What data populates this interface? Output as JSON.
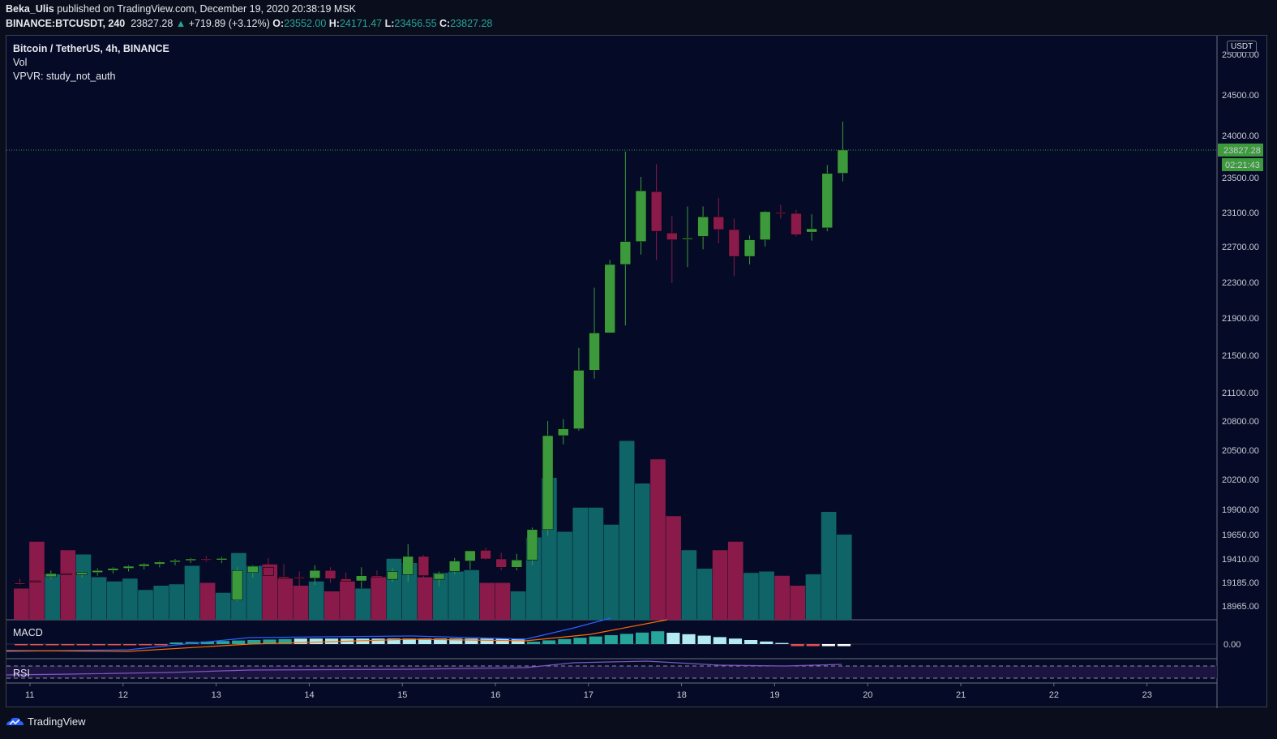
{
  "header": {
    "author": "Beka_Ulis",
    "published": " published on TradingView.com, December 19, 2020 20:38:19 MSK",
    "symbol": "BINANCE:BTCUSDT, 240",
    "last": "23827.28",
    "change": "+719.89 (+3.12%)",
    "o_label": "O:",
    "o": "23552.00",
    "h_label": "H:",
    "h": "24171.47",
    "l_label": "L:",
    "l": "23456.55",
    "c_label": "C:",
    "c": "23827.28"
  },
  "legend": {
    "title": "Bitcoin / TetherUS, 4h, BINANCE",
    "vol": "Vol",
    "vpvr": "VPVR: study_not_auth"
  },
  "currency_button": "USDT",
  "price_axis": {
    "labels": [
      "25000.00",
      "24500.00",
      "24000.00",
      "23500.00",
      "23100.00",
      "22700.00",
      "22300.00",
      "21900.00",
      "21500.00",
      "21100.00",
      "20800.00",
      "20500.00",
      "20200.00",
      "19900.00",
      "19650.00",
      "19410.00",
      "19185.00",
      "18965.00"
    ],
    "last_price": "23827.28",
    "countdown": "02:21:43"
  },
  "macd": {
    "label": "MACD",
    "zero": "0.00"
  },
  "rsi": {
    "label": "RSI"
  },
  "time_axis": {
    "labels": [
      "11",
      "12",
      "13",
      "14",
      "15",
      "16",
      "17",
      "18",
      "19",
      "20",
      "21",
      "22",
      "23"
    ]
  },
  "footer": {
    "brand": "TradingView"
  },
  "colors": {
    "up": "#3c9a3c",
    "down": "#8a1a4a",
    "vol_up": "#0f6468",
    "vol_down": "#8a1a4a",
    "bg": "#050a26"
  },
  "chart_data": {
    "type": "candlestick",
    "timeframe": "4h",
    "x_start": "Dec 11",
    "candles": [
      {
        "o": 19180,
        "h": 19220,
        "l": 19160,
        "c": 19175
      },
      {
        "o": 19200,
        "h": 19260,
        "l": 19150,
        "c": 19190
      },
      {
        "o": 19240,
        "h": 19300,
        "l": 19220,
        "c": 19270
      },
      {
        "o": 19270,
        "h": 19310,
        "l": 19240,
        "c": 19260
      },
      {
        "o": 19260,
        "h": 19290,
        "l": 19230,
        "c": 19280
      },
      {
        "o": 19280,
        "h": 19320,
        "l": 19250,
        "c": 19300
      },
      {
        "o": 19300,
        "h": 19330,
        "l": 19270,
        "c": 19320
      },
      {
        "o": 19320,
        "h": 19350,
        "l": 19290,
        "c": 19340
      },
      {
        "o": 19340,
        "h": 19370,
        "l": 19310,
        "c": 19360
      },
      {
        "o": 19360,
        "h": 19390,
        "l": 19330,
        "c": 19380
      },
      {
        "o": 19380,
        "h": 19410,
        "l": 19350,
        "c": 19395
      },
      {
        "o": 19395,
        "h": 19420,
        "l": 19370,
        "c": 19410
      },
      {
        "o": 19410,
        "h": 19440,
        "l": 19380,
        "c": 19400
      },
      {
        "o": 19400,
        "h": 19430,
        "l": 19370,
        "c": 19415
      },
      {
        "o": 19020,
        "h": 19330,
        "l": 19010,
        "c": 19300
      },
      {
        "o": 19280,
        "h": 19350,
        "l": 19230,
        "c": 19340
      },
      {
        "o": 19330,
        "h": 19420,
        "l": 19260,
        "c": 19250
      },
      {
        "o": 19240,
        "h": 19360,
        "l": 19200,
        "c": 19225
      },
      {
        "o": 19235,
        "h": 19290,
        "l": 19130,
        "c": 19225
      },
      {
        "o": 19225,
        "h": 19350,
        "l": 19160,
        "c": 19300
      },
      {
        "o": 19300,
        "h": 19330,
        "l": 19180,
        "c": 19220
      },
      {
        "o": 19220,
        "h": 19280,
        "l": 19110,
        "c": 19195
      },
      {
        "o": 19200,
        "h": 19330,
        "l": 19130,
        "c": 19250
      },
      {
        "o": 19250,
        "h": 19300,
        "l": 19180,
        "c": 19245
      },
      {
        "o": 19215,
        "h": 19320,
        "l": 19190,
        "c": 19290
      },
      {
        "o": 19260,
        "h": 19555,
        "l": 19190,
        "c": 19435
      },
      {
        "o": 19435,
        "h": 19450,
        "l": 19200,
        "c": 19250
      },
      {
        "o": 19215,
        "h": 19290,
        "l": 19150,
        "c": 19270
      },
      {
        "o": 19290,
        "h": 19420,
        "l": 19260,
        "c": 19390
      },
      {
        "o": 19390,
        "h": 19470,
        "l": 19310,
        "c": 19490
      },
      {
        "o": 19495,
        "h": 19520,
        "l": 19400,
        "c": 19410
      },
      {
        "o": 19410,
        "h": 19470,
        "l": 19300,
        "c": 19330
      },
      {
        "o": 19330,
        "h": 19460,
        "l": 19300,
        "c": 19400
      },
      {
        "o": 19400,
        "h": 19720,
        "l": 19350,
        "c": 19700
      },
      {
        "o": 19700,
        "h": 20800,
        "l": 19640,
        "c": 20650
      },
      {
        "o": 20650,
        "h": 20820,
        "l": 20560,
        "c": 20720
      },
      {
        "o": 20720,
        "h": 21580,
        "l": 20700,
        "c": 21340
      },
      {
        "o": 21340,
        "h": 22240,
        "l": 21250,
        "c": 21740
      },
      {
        "o": 21740,
        "h": 22550,
        "l": 21760,
        "c": 22500
      },
      {
        "o": 22500,
        "h": 23810,
        "l": 21820,
        "c": 22760
      },
      {
        "o": 22760,
        "h": 23510,
        "l": 22610,
        "c": 23350
      },
      {
        "o": 23340,
        "h": 23660,
        "l": 22550,
        "c": 22880
      },
      {
        "o": 22860,
        "h": 23060,
        "l": 22290,
        "c": 22780
      },
      {
        "o": 22790,
        "h": 23170,
        "l": 22470,
        "c": 22800
      },
      {
        "o": 22820,
        "h": 23170,
        "l": 22670,
        "c": 23050
      },
      {
        "o": 23050,
        "h": 23270,
        "l": 22740,
        "c": 22900
      },
      {
        "o": 22900,
        "h": 23030,
        "l": 22370,
        "c": 22590
      },
      {
        "o": 22590,
        "h": 22830,
        "l": 22500,
        "c": 22780
      },
      {
        "o": 22780,
        "h": 23120,
        "l": 22700,
        "c": 23110
      },
      {
        "o": 23100,
        "h": 23190,
        "l": 23030,
        "c": 23090
      },
      {
        "o": 23090,
        "h": 23130,
        "l": 22820,
        "c": 22840
      },
      {
        "o": 22870,
        "h": 23080,
        "l": 22770,
        "c": 22910
      },
      {
        "o": 22920,
        "h": 23650,
        "l": 22880,
        "c": 23550
      },
      {
        "o": 23552,
        "h": 24171,
        "l": 23456,
        "c": 23827
      }
    ],
    "volume": [
      0.22,
      0.55,
      0.32,
      0.49,
      0.46,
      0.3,
      0.27,
      0.29,
      0.21,
      0.24,
      0.25,
      0.38,
      0.26,
      0.19,
      0.47,
      0.38,
      0.39,
      0.29,
      0.24,
      0.27,
      0.2,
      0.27,
      0.22,
      0.3,
      0.43,
      0.4,
      0.3,
      0.33,
      0.34,
      0.35,
      0.26,
      0.26,
      0.2,
      0.58,
      1.0,
      0.62,
      0.79,
      0.79,
      0.67,
      1.26,
      0.96,
      1.13,
      0.73,
      0.49,
      0.36,
      0.49,
      0.55,
      0.33,
      0.34,
      0.31,
      0.24,
      0.32,
      0.76,
      0.6
    ],
    "ylim": [
      18850,
      25100
    ]
  }
}
